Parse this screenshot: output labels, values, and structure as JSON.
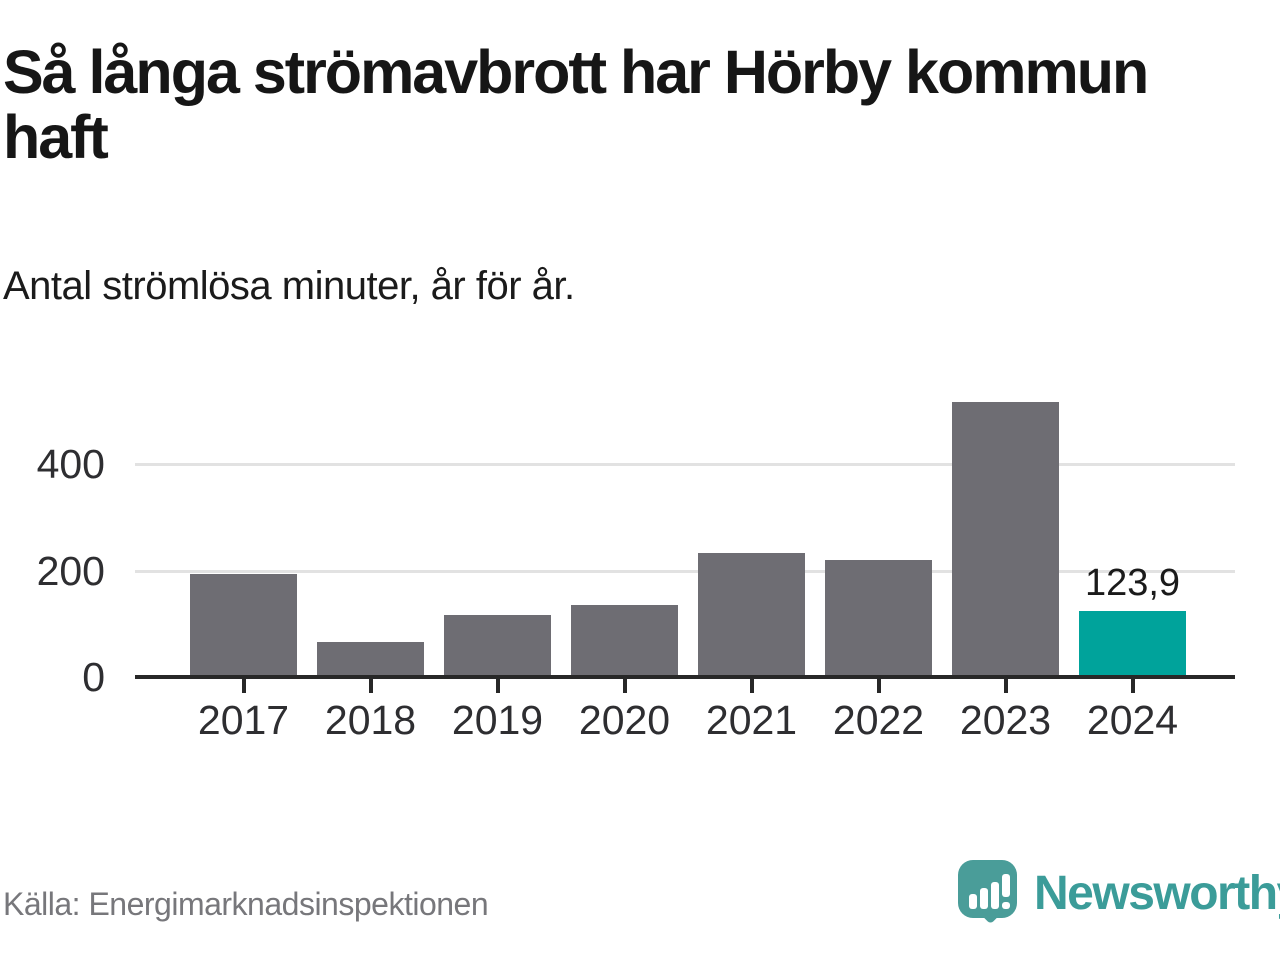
{
  "header": {
    "title": "Så långa strömavbrott har Hörby kommun haft",
    "subtitle": "Antal strömlösa minuter, år för år."
  },
  "chart_data": {
    "type": "bar",
    "title": "Så långa strömavbrott har Hörby kommun haft",
    "subtitle": "Antal strömlösa minuter, år för år.",
    "categories": [
      "2017",
      "2018",
      "2019",
      "2020",
      "2021",
      "2022",
      "2023",
      "2024"
    ],
    "values": [
      193,
      65,
      116,
      135,
      233,
      220,
      516,
      123.9
    ],
    "value_labels": [
      "",
      "",
      "",
      "",
      "",
      "",
      "",
      "123,9"
    ],
    "highlight_category": "2024",
    "yticks": [
      0,
      200,
      400
    ],
    "ylim": [
      0,
      540
    ],
    "grid": "horizontal-only",
    "legend": "none",
    "colors": {
      "bar": "#6e6d73",
      "highlight": "#00a39b",
      "gridline": "#e2e2e2",
      "axis": "#282828",
      "tick_label": "#2e2e31",
      "value_label": "#1a1a1a"
    }
  },
  "footer": {
    "source": "Källa: Energimarknadsinspektionen",
    "brand": "Newsworthy"
  }
}
